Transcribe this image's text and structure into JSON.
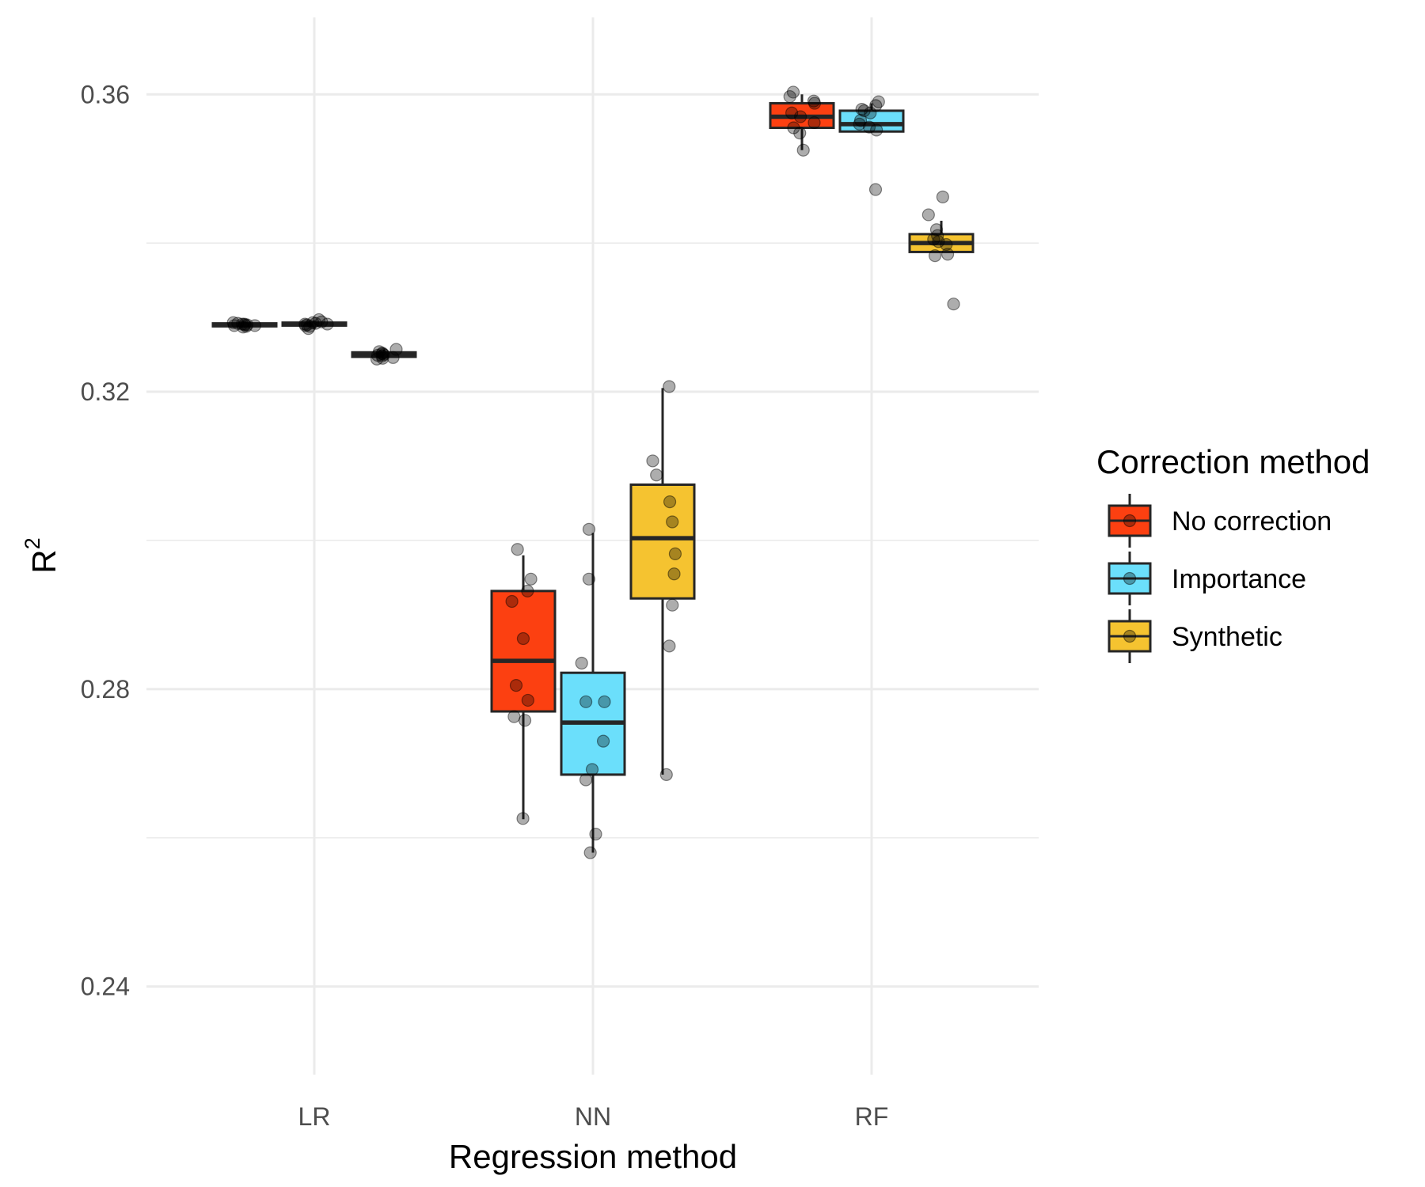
{
  "chart_data": {
    "type": "box",
    "xlabel": "Regression method",
    "ylabel_base": "R",
    "ylabel_superscript": "2",
    "categories": [
      "LR",
      "NN",
      "RF"
    ],
    "yticks": [
      0.24,
      0.28,
      0.32,
      0.36
    ],
    "ytick_labels": [
      "0.24",
      "0.28",
      "0.32",
      "0.36"
    ],
    "ylim": [
      0.229,
      0.3695
    ],
    "grid": true,
    "legend": {
      "title": "Correction method",
      "position": "right"
    },
    "series": [
      {
        "name": "No correction",
        "color": "#FC4011",
        "boxes": [
          {
            "category": "LR",
            "q1": 0.3288,
            "median": 0.329,
            "q3": 0.3292,
            "whisker_low": 0.3286,
            "whisker_high": 0.3294,
            "points": [
              0.3291,
              0.3288,
              0.3289,
              0.3292,
              0.3287,
              0.329,
              0.3293,
              0.3289,
              0.329,
              0.3291
            ]
          },
          {
            "category": "NN",
            "q1": 0.277,
            "median": 0.2838,
            "q3": 0.2932,
            "whisker_low": 0.2625,
            "whisker_high": 0.298,
            "points": [
              0.2988,
              0.2948,
              0.2932,
              0.2918,
              0.2868,
              0.2805,
              0.2785,
              0.2763,
              0.2758,
              0.2626
            ]
          },
          {
            "category": "RF",
            "q1": 0.3555,
            "median": 0.357,
            "q3": 0.3588,
            "whisker_low": 0.3525,
            "whisker_high": 0.36,
            "points": [
              0.3603,
              0.3597,
              0.3591,
              0.3588,
              0.3575,
              0.357,
              0.3562,
              0.3555,
              0.3548,
              0.3525
            ]
          }
        ]
      },
      {
        "name": "Importance",
        "color": "#6BDFFB",
        "boxes": [
          {
            "category": "LR",
            "q1": 0.3289,
            "median": 0.3291,
            "q3": 0.3293,
            "whisker_low": 0.3285,
            "whisker_high": 0.3296,
            "points": [
              0.3297,
              0.3285,
              0.3289,
              0.3291,
              0.3293,
              0.329,
              0.3292,
              0.3288,
              0.3291,
              0.3294
            ]
          },
          {
            "category": "NN",
            "q1": 0.2685,
            "median": 0.2755,
            "q3": 0.2822,
            "whisker_low": 0.258,
            "whisker_high": 0.301,
            "points": [
              0.3015,
              0.2948,
              0.2835,
              0.2783,
              0.2783,
              0.273,
              0.2692,
              0.2678,
              0.2605,
              0.258
            ]
          },
          {
            "category": "RF",
            "q1": 0.355,
            "median": 0.356,
            "q3": 0.3578,
            "whisker_low": 0.355,
            "whisker_high": 0.3588,
            "points": [
              0.359,
              0.3585,
              0.358,
              0.3578,
              0.3575,
              0.3565,
              0.356,
              0.3556,
              0.3552,
              0.3472
            ]
          }
        ]
      },
      {
        "name": "Synthetic",
        "color": "#F5C330",
        "boxes": [
          {
            "category": "LR",
            "q1": 0.3247,
            "median": 0.325,
            "q3": 0.3253,
            "whisker_low": 0.3243,
            "whisker_high": 0.3257,
            "points": [
              0.3257,
              0.3254,
              0.3252,
              0.325,
              0.3248,
              0.3246,
              0.3245,
              0.3251,
              0.3249,
              0.3244
            ]
          },
          {
            "category": "NN",
            "q1": 0.2922,
            "median": 0.3003,
            "q3": 0.3075,
            "whisker_low": 0.2685,
            "whisker_high": 0.3205,
            "points": [
              0.3207,
              0.3107,
              0.3088,
              0.3052,
              0.3025,
              0.2982,
              0.2955,
              0.2913,
              0.2858,
              0.2685
            ]
          },
          {
            "category": "RF",
            "q1": 0.3388,
            "median": 0.34,
            "q3": 0.3412,
            "whisker_low": 0.3388,
            "whisker_high": 0.343,
            "points": [
              0.3462,
              0.3438,
              0.3418,
              0.341,
              0.3405,
              0.3402,
              0.3398,
              0.3385,
              0.3383,
              0.3318
            ]
          }
        ]
      }
    ]
  }
}
